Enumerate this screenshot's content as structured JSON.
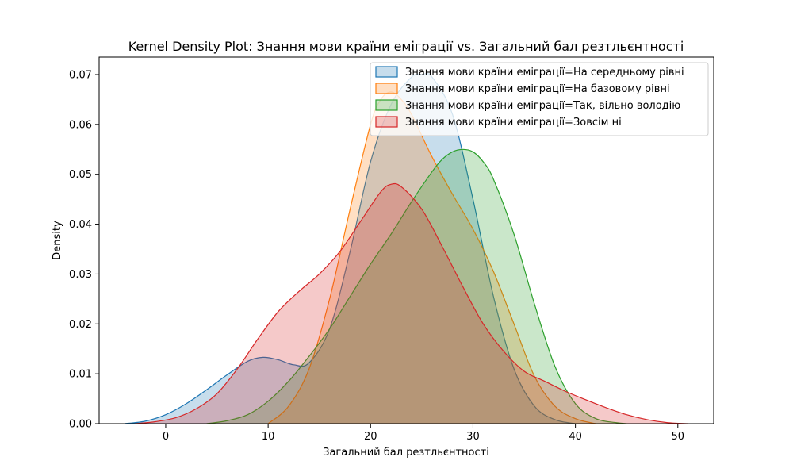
{
  "chart_data": {
    "type": "area",
    "title": "Kernel Density Plot: Знання мови країни еміграції vs. Загальний бал рeзтльєнтності",
    "xlabel": "Загальний бал рeзтльєнтності",
    "ylabel": "Density",
    "xlim": [
      -6.5,
      53.5
    ],
    "ylim": [
      0,
      0.0735
    ],
    "xticks": [
      0,
      10,
      20,
      30,
      40,
      50
    ],
    "yticks": [
      0.0,
      0.01,
      0.02,
      0.03,
      0.04,
      0.05,
      0.06,
      0.07
    ],
    "ytick_labels": [
      "0.00",
      "0.01",
      "0.02",
      "0.03",
      "0.04",
      "0.05",
      "0.06",
      "0.07"
    ],
    "grid": false,
    "legend_position": "top-right",
    "series": [
      {
        "name": "Знання мови країни еміграції=На середньому рівні",
        "color": "#1f77b4",
        "x": [
          -4,
          -2,
          0,
          2,
          4,
          6,
          8,
          9.5,
          11,
          12.5,
          14,
          16,
          18,
          20,
          22,
          24,
          25,
          26,
          28,
          30,
          32,
          34,
          36,
          38,
          40
        ],
        "y": [
          0,
          0.0005,
          0.0018,
          0.004,
          0.0068,
          0.0098,
          0.0125,
          0.0133,
          0.0128,
          0.0118,
          0.0122,
          0.019,
          0.0345,
          0.0525,
          0.064,
          0.0695,
          0.07,
          0.0695,
          0.062,
          0.045,
          0.0255,
          0.011,
          0.0035,
          0.0008,
          0
        ]
      },
      {
        "name": "Знання мови країни еміграції=На базовому рівні",
        "color": "#ff7f0e",
        "x": [
          10,
          12,
          14,
          16,
          18,
          20,
          21,
          22,
          23,
          24,
          26,
          28,
          30,
          32,
          34,
          36,
          38,
          40,
          42
        ],
        "y": [
          0,
          0.0035,
          0.011,
          0.025,
          0.043,
          0.06,
          0.065,
          0.0665,
          0.065,
          0.062,
          0.0535,
          0.046,
          0.039,
          0.0305,
          0.02,
          0.0095,
          0.0035,
          0.001,
          0
        ]
      },
      {
        "name": "Знання мови країни еміграції=Так, вільно володію",
        "color": "#2ca02c",
        "x": [
          4,
          6,
          8,
          10,
          12,
          14,
          16,
          18,
          20,
          22,
          24,
          26,
          27,
          28,
          29,
          30,
          31,
          32,
          34,
          36,
          38,
          40,
          42,
          44,
          45
        ],
        "y": [
          0,
          0.0006,
          0.0018,
          0.0045,
          0.0085,
          0.0135,
          0.019,
          0.0255,
          0.032,
          0.038,
          0.0445,
          0.0505,
          0.053,
          0.0545,
          0.055,
          0.0545,
          0.0525,
          0.049,
          0.038,
          0.024,
          0.0115,
          0.004,
          0.001,
          0.0002,
          0
        ]
      },
      {
        "name": "Знання мови країни еміграції=Зовсім ні",
        "color": "#d62728",
        "x": [
          -3,
          -1,
          1,
          3,
          5,
          7,
          9,
          11,
          13,
          15,
          17,
          19,
          21,
          22,
          23,
          25,
          27,
          29,
          31,
          33,
          35,
          37,
          39,
          41,
          43,
          45,
          47,
          49,
          51
        ],
        "y": [
          0,
          0.0004,
          0.0012,
          0.003,
          0.006,
          0.011,
          0.017,
          0.0225,
          0.0265,
          0.03,
          0.0345,
          0.0405,
          0.0465,
          0.048,
          0.0475,
          0.043,
          0.0355,
          0.0275,
          0.02,
          0.0145,
          0.0105,
          0.0085,
          0.0065,
          0.0048,
          0.0032,
          0.0018,
          0.0008,
          0.0002,
          0
        ]
      }
    ]
  }
}
